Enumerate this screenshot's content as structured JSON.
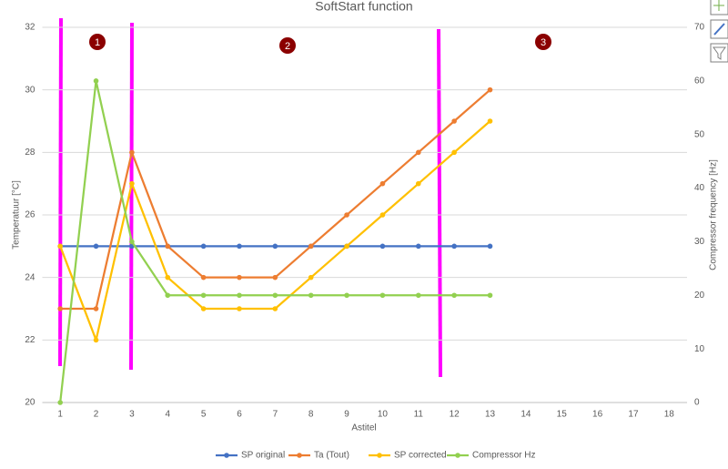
{
  "chart_data": {
    "type": "line",
    "title": "SoftStart function",
    "x_label": "Astitel",
    "y_label": "Temperatuur [°C]",
    "y2_label": "Compressor frequency [Hz]",
    "categories": [
      "1",
      "2",
      "3",
      "4",
      "5",
      "6",
      "7",
      "8",
      "9",
      "10",
      "11",
      "12",
      "13",
      "14",
      "15",
      "16",
      "17",
      "18"
    ],
    "series": [
      {
        "name": "SP original",
        "color": "#4472c4",
        "values": [
          25,
          25,
          25,
          25,
          25,
          25,
          25,
          25,
          25,
          25,
          25,
          25,
          25,
          null,
          null,
          null,
          null,
          null
        ]
      },
      {
        "name": "Ta (Tout)",
        "color": "#ed7d31",
        "values": [
          23,
          23,
          28,
          25,
          24,
          24,
          24,
          25,
          26,
          27,
          28,
          29,
          30,
          null,
          null,
          null,
          null,
          null
        ]
      },
      {
        "name": "SP corrected",
        "color": "#ffc000",
        "values": [
          25,
          22,
          27,
          24,
          23,
          23,
          23,
          24,
          25,
          26,
          27,
          28,
          29,
          null,
          null,
          null,
          null,
          null
        ]
      },
      {
        "name": "Compressor Hz",
        "color": "#92d050",
        "axis": "y2",
        "values": [
          0,
          60,
          30,
          20,
          20,
          20,
          20,
          20,
          20,
          20,
          20,
          20,
          20,
          null,
          null,
          null,
          null,
          null
        ]
      }
    ],
    "ylim": [
      20,
      32
    ],
    "yticks": [
      20,
      22,
      24,
      26,
      28,
      30,
      32
    ],
    "y2lim": [
      0,
      70
    ],
    "y2ticks": [
      0,
      10,
      20,
      30,
      40,
      50,
      60,
      70
    ],
    "grid": true,
    "legend": "bottom",
    "annotations": [
      "1",
      "2",
      "3"
    ]
  }
}
